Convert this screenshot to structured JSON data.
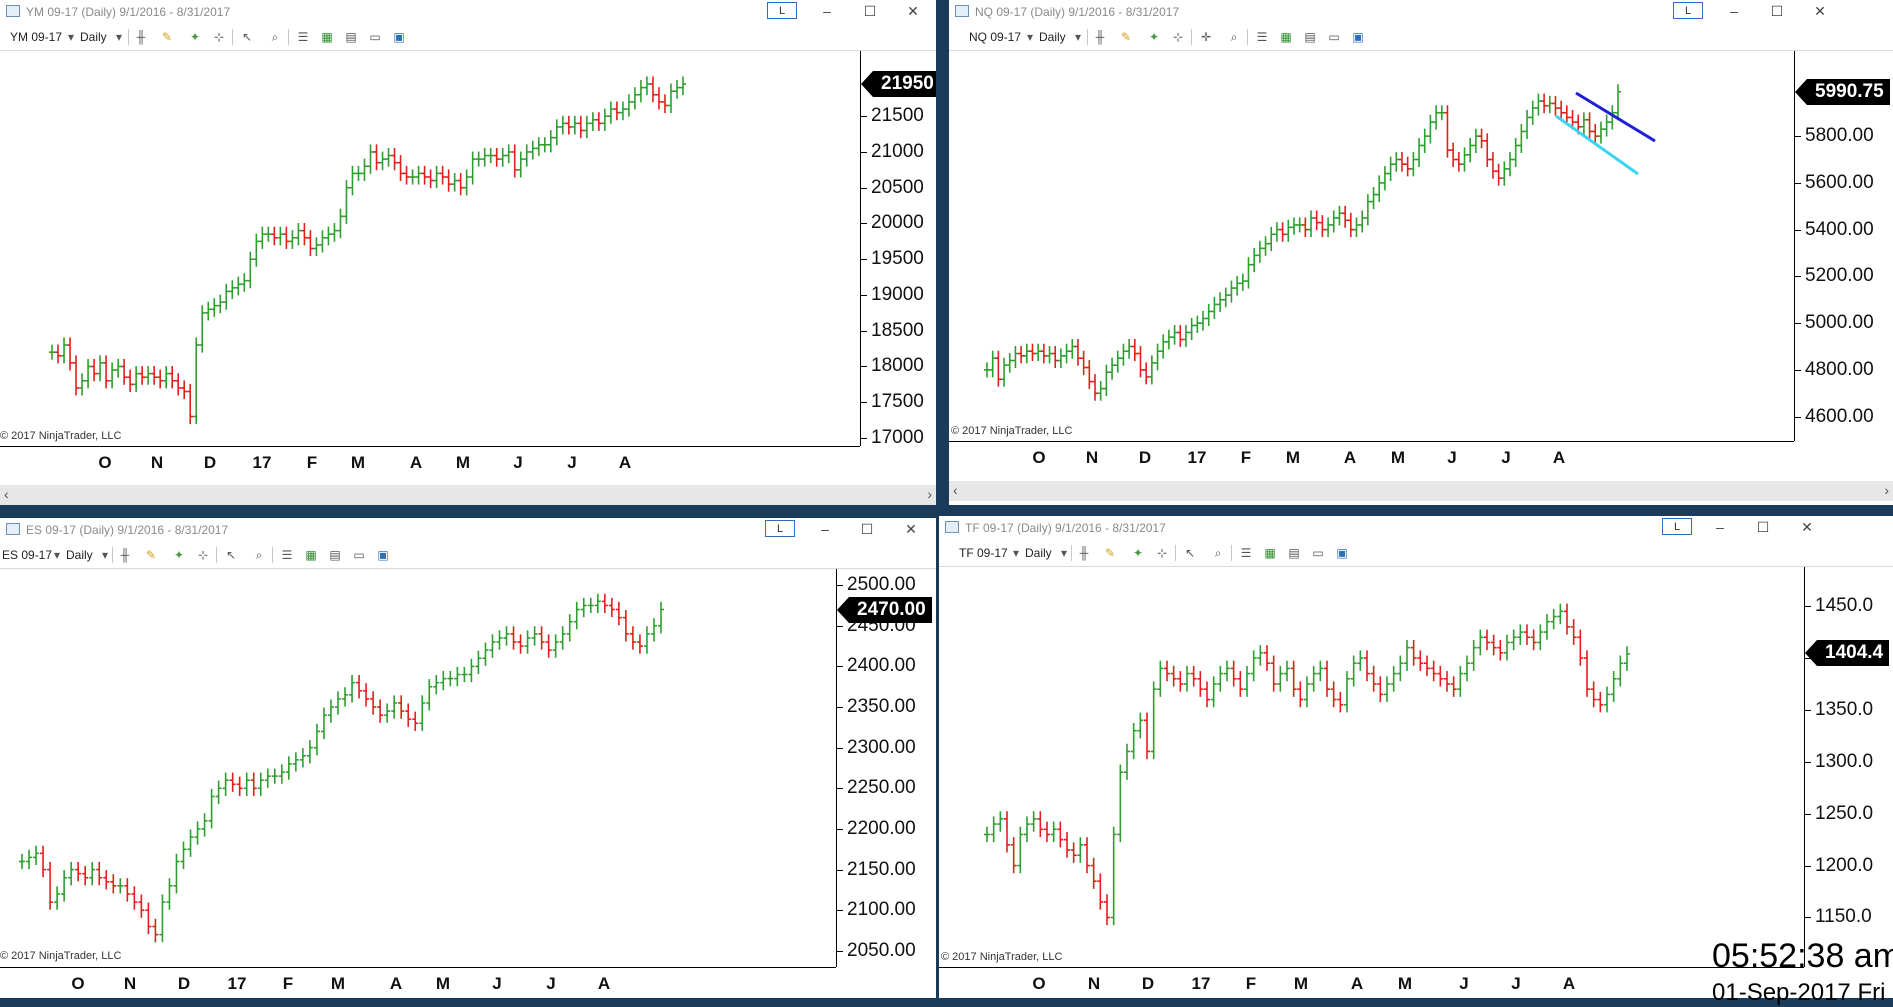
{
  "windows": [
    {
      "id": "ym",
      "title": "YM 09-17 (Daily)  9/1/2016 - 8/31/2017",
      "instrument": "YM 09-17",
      "period": "Daily",
      "last_price": "21950",
      "copyright": "© 2017 NinjaTrader, LLC",
      "lbtn": "L",
      "y_ticks": [
        "21500",
        "21000",
        "20500",
        "20000",
        "19500",
        "19000",
        "18500",
        "18000",
        "17500",
        "17000"
      ],
      "x_ticks": [
        "O",
        "N",
        "D",
        "17",
        "F",
        "M",
        "A",
        "M",
        "J",
        "J",
        "A"
      ],
      "series": [
        18200,
        18150,
        18300,
        18050,
        17700,
        17800,
        18000,
        17900,
        18050,
        17800,
        17950,
        18000,
        17850,
        17750,
        17900,
        17850,
        17900,
        17850,
        17800,
        17900,
        17800,
        17700,
        17650,
        17300,
        18300,
        18750,
        18800,
        18850,
        18900,
        19050,
        19100,
        19150,
        19200,
        19500,
        19750,
        19850,
        19850,
        19800,
        19850,
        19750,
        19800,
        19900,
        19800,
        19650,
        19700,
        19800,
        19850,
        19900,
        20100,
        20500,
        20700,
        20700,
        20800,
        21000,
        20850,
        20900,
        20950,
        20850,
        20700,
        20650,
        20650,
        20700,
        20650,
        20600,
        20700,
        20650,
        20550,
        20600,
        20500,
        20650,
        20900,
        20900,
        20950,
        20950,
        20900,
        20950,
        21000,
        20750,
        20900,
        21000,
        21050,
        21100,
        21100,
        21200,
        21350,
        21400,
        21350,
        21400,
        21300,
        21400,
        21450,
        21400,
        21500,
        21600,
        21550,
        21600,
        21700,
        21800,
        21900,
        21950,
        21800,
        21700,
        21650,
        21850,
        21900,
        21950
      ]
    },
    {
      "id": "nq",
      "title": "NQ 09-17 (Daily)  9/1/2016 - 8/31/2017",
      "instrument": "NQ 09-17",
      "period": "Daily",
      "last_price": "5990.75",
      "copyright": "© 2017 NinjaTrader, LLC",
      "lbtn": "L",
      "y_ticks": [
        "5800.00",
        "5600.00",
        "5400.00",
        "5200.00",
        "5000.00",
        "4800.00",
        "4600.00"
      ],
      "x_ticks": [
        "O",
        "N",
        "D",
        "17",
        "F",
        "M",
        "A",
        "M",
        "J",
        "J",
        "A"
      ],
      "series": [
        4800,
        4850,
        4760,
        4820,
        4840,
        4870,
        4860,
        4880,
        4870,
        4880,
        4860,
        4870,
        4840,
        4860,
        4880,
        4900,
        4850,
        4810,
        4750,
        4700,
        4720,
        4790,
        4820,
        4850,
        4880,
        4900,
        4870,
        4800,
        4770,
        4830,
        4880,
        4920,
        4940,
        4960,
        4930,
        4960,
        4990,
        5000,
        5020,
        5050,
        5080,
        5100,
        5120,
        5150,
        5170,
        5180,
        5250,
        5290,
        5320,
        5340,
        5380,
        5400,
        5380,
        5410,
        5420,
        5420,
        5400,
        5450,
        5430,
        5400,
        5420,
        5450,
        5470,
        5440,
        5400,
        5420,
        5450,
        5520,
        5550,
        5600,
        5640,
        5680,
        5700,
        5680,
        5660,
        5700,
        5760,
        5800,
        5860,
        5900,
        5900,
        5740,
        5700,
        5680,
        5720,
        5760,
        5800,
        5780,
        5700,
        5650,
        5620,
        5660,
        5700,
        5760,
        5820,
        5880,
        5920,
        5950,
        5930,
        5940,
        5920,
        5900,
        5880,
        5860,
        5840,
        5870,
        5820,
        5800,
        5830,
        5860,
        5900,
        5990
      ]
    },
    {
      "id": "es",
      "title": "ES 09-17 (Daily)  9/1/2016 - 8/31/2017",
      "instrument": "ES 09-17",
      "period": "Daily",
      "last_price": "2470.00",
      "copyright": "© 2017 NinjaTrader, LLC",
      "lbtn": "L",
      "y_ticks": [
        "2500.00",
        "2450.00",
        "2400.00",
        "2350.00",
        "2300.00",
        "2250.00",
        "2200.00",
        "2150.00",
        "2100.00",
        "2050.00"
      ],
      "x_ticks": [
        "O",
        "N",
        "D",
        "17",
        "F",
        "M",
        "A",
        "M",
        "J",
        "J",
        "A"
      ],
      "series": [
        2160,
        2165,
        2170,
        2150,
        2110,
        2120,
        2140,
        2150,
        2145,
        2140,
        2150,
        2140,
        2135,
        2130,
        2130,
        2120,
        2110,
        2100,
        2080,
        2070,
        2110,
        2130,
        2160,
        2175,
        2190,
        2200,
        2210,
        2240,
        2250,
        2260,
        2255,
        2250,
        2260,
        2250,
        2260,
        2265,
        2265,
        2270,
        2280,
        2285,
        2290,
        2300,
        2320,
        2340,
        2350,
        2360,
        2365,
        2380,
        2370,
        2360,
        2350,
        2340,
        2345,
        2355,
        2345,
        2335,
        2330,
        2355,
        2375,
        2380,
        2385,
        2385,
        2390,
        2390,
        2400,
        2410,
        2420,
        2430,
        2435,
        2440,
        2430,
        2425,
        2435,
        2440,
        2430,
        2420,
        2430,
        2440,
        2455,
        2470,
        2475,
        2475,
        2480,
        2475,
        2470,
        2460,
        2440,
        2430,
        2425,
        2440,
        2450,
        2470
      ]
    },
    {
      "id": "tf",
      "title": "TF 09-17 (Daily)  9/1/2016 - 8/31/2017",
      "instrument": "TF 09-17",
      "period": "Daily",
      "last_price": "1404.4",
      "copyright": "© 2017 NinjaTrader, LLC",
      "lbtn": "L",
      "y_ticks": [
        "1450.0",
        "1400.0",
        "1350.0",
        "1300.0",
        "1250.0",
        "1200.0",
        "1150.0"
      ],
      "x_ticks": [
        "O",
        "N",
        "D",
        "17",
        "F",
        "M",
        "A",
        "M",
        "J",
        "J",
        "A"
      ],
      "series": [
        1230,
        1240,
        1245,
        1220,
        1200,
        1230,
        1240,
        1245,
        1235,
        1230,
        1235,
        1225,
        1215,
        1210,
        1220,
        1200,
        1185,
        1165,
        1150,
        1230,
        1290,
        1310,
        1330,
        1340,
        1310,
        1370,
        1390,
        1385,
        1380,
        1375,
        1385,
        1380,
        1370,
        1360,
        1375,
        1385,
        1390,
        1380,
        1370,
        1385,
        1400,
        1405,
        1395,
        1375,
        1385,
        1390,
        1370,
        1360,
        1375,
        1385,
        1390,
        1370,
        1360,
        1355,
        1380,
        1395,
        1400,
        1385,
        1375,
        1365,
        1375,
        1385,
        1395,
        1410,
        1400,
        1395,
        1390,
        1385,
        1380,
        1375,
        1370,
        1385,
        1395,
        1410,
        1420,
        1415,
        1410,
        1405,
        1415,
        1420,
        1425,
        1420,
        1415,
        1425,
        1435,
        1440,
        1445,
        1430,
        1420,
        1400,
        1370,
        1360,
        1355,
        1365,
        1380,
        1395,
        1404
      ]
    }
  ],
  "clock": "05:52:38 am",
  "clock_date": "01-Sep-2017 Fri",
  "colors": {
    "up": "#2e9e2e",
    "down": "#e0201a",
    "axis": "#000000",
    "trend_upper": "#1f1fd6",
    "trend_lower": "#3ad6f0"
  },
  "icons": [
    "chart-icon",
    "bars-icon",
    "pencil-icon",
    "magic-wand-icon",
    "crosshair-icon",
    "pointer-icon",
    "zoom-icon",
    "properties-icon",
    "data-box-icon",
    "template-icon",
    "list-icon"
  ]
}
